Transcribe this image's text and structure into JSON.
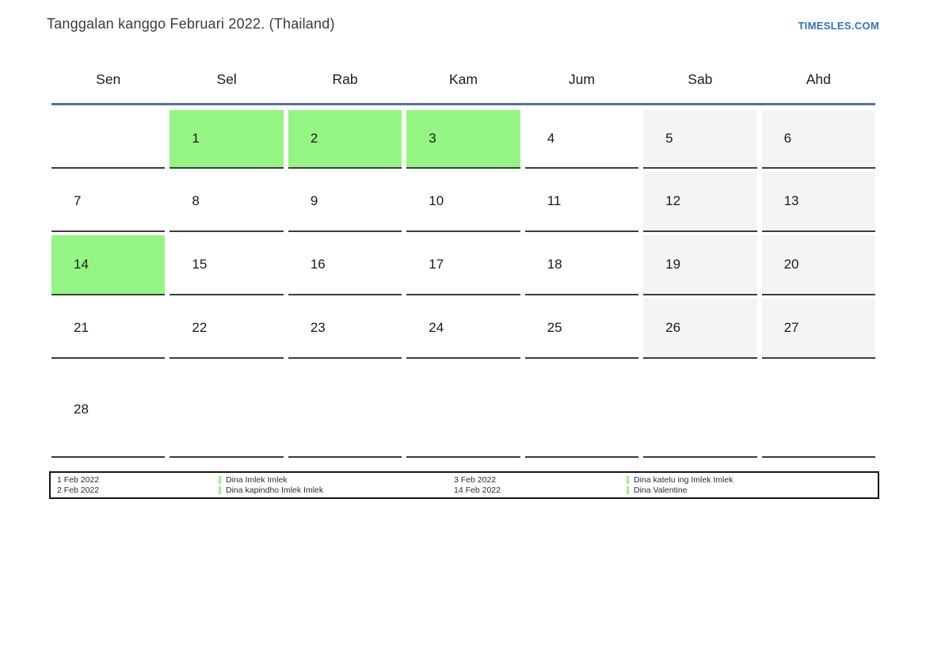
{
  "page": {
    "title": "Tanggalan kanggo Februari 2022. (Thailand)",
    "brand": "TIMESLES.COM"
  },
  "calendar": {
    "month": "Februari 2022",
    "weekdays": [
      "Sen",
      "Sel",
      "Rab",
      "Kam",
      "Jum",
      "Sab",
      "Ahd"
    ],
    "weeks": [
      [
        "",
        "1",
        "2",
        "3",
        "4",
        "5",
        "6"
      ],
      [
        "7",
        "8",
        "9",
        "10",
        "11",
        "12",
        "13"
      ],
      [
        "14",
        "15",
        "16",
        "17",
        "18",
        "19",
        "20"
      ],
      [
        "21",
        "22",
        "23",
        "24",
        "25",
        "26",
        "27"
      ],
      [
        "28",
        "",
        "",
        "",
        "",
        "",
        ""
      ]
    ],
    "highlighted_days": [
      1,
      2,
      3,
      14
    ],
    "weekend_columns": [
      "Sab",
      "Ahd"
    ]
  },
  "legend": {
    "entries": [
      {
        "date": "1 Feb 2022",
        "event": "Dina Imlek Imlek"
      },
      {
        "date": "2 Feb 2022",
        "event": "Dina kapindho Imlek Imlek"
      },
      {
        "date": "3 Feb 2022",
        "event": "Dina katelu ing Imlek Imlek"
      },
      {
        "date": "14 Feb 2022",
        "event": "Dina Valentine"
      }
    ]
  },
  "colors": {
    "highlight_green": "#95f584",
    "weekend_gray": "#f4f4f4",
    "header_line_blue": "#52749e",
    "brand_blue": "#2e75b6",
    "cell_border": "#3d3d3d"
  }
}
